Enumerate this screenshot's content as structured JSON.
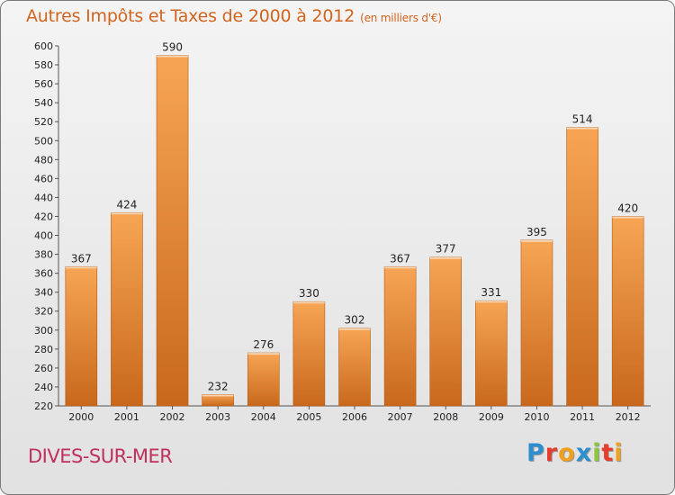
{
  "header": {
    "title": "Autres Impôts et Taxes de 2000 à 2012",
    "subtitle": "(en milliers d'€)"
  },
  "footer": {
    "city": "DIVES-SUR-MER",
    "brand": [
      "P",
      "r",
      "o",
      "x",
      "i",
      "t",
      "i"
    ]
  },
  "colors": {
    "bar_light": "#f7a555",
    "bar_dark": "#c8681c",
    "title": "#d2641e",
    "city": "#c0305e",
    "brand": [
      "#2e8fcf",
      "#e63c2e",
      "#f0a020",
      "#2e8fcf",
      "#8cc63f",
      "#e63c2e",
      "#f0a020"
    ]
  },
  "chart_data": {
    "type": "bar",
    "title": "Autres Impôts et Taxes de 2000 à 2012",
    "subtitle": "(en milliers d'€)",
    "categories": [
      "2000",
      "2001",
      "2002",
      "2003",
      "2004",
      "2005",
      "2006",
      "2007",
      "2008",
      "2009",
      "2010",
      "2011",
      "2012"
    ],
    "values": [
      367,
      424,
      590,
      232,
      276,
      330,
      302,
      367,
      377,
      331,
      395,
      514,
      420
    ],
    "ylim": [
      220,
      600
    ],
    "yticks": [
      220,
      240,
      260,
      280,
      300,
      320,
      340,
      360,
      380,
      400,
      420,
      440,
      460,
      480,
      500,
      520,
      540,
      560,
      580,
      600
    ],
    "grid": false
  }
}
